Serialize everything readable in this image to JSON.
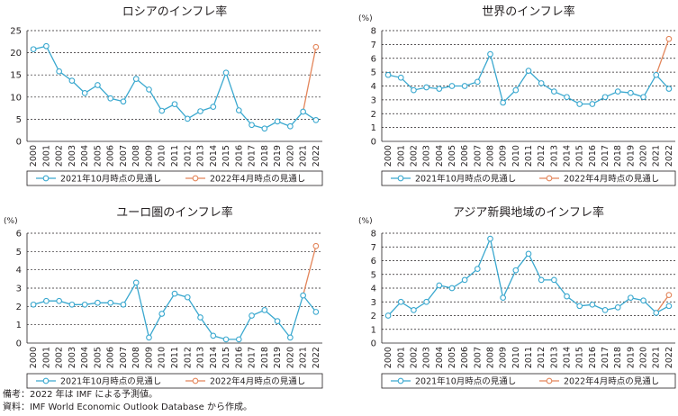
{
  "chart_data": [
    {
      "type": "line",
      "title": "ロシアのインフレ率",
      "ylabel": "",
      "ylim": [
        0,
        25
      ],
      "yticks": [
        0,
        5,
        10,
        15,
        20,
        25
      ],
      "grid": true,
      "legend_position": "bottom",
      "x": [
        "2000",
        "2001",
        "2002",
        "2003",
        "2004",
        "2005",
        "2006",
        "2007",
        "2008",
        "2009",
        "2010",
        "2011",
        "2012",
        "2013",
        "2014",
        "2015",
        "2016",
        "2017",
        "2018",
        "2019",
        "2020",
        "2021",
        "2022"
      ],
      "series": [
        {
          "name": "2021年10月時点の見通し",
          "color": "#3aa8cf",
          "values": [
            20.8,
            21.5,
            15.8,
            13.7,
            10.9,
            12.7,
            9.7,
            9.0,
            14.1,
            11.7,
            6.9,
            8.4,
            5.1,
            6.8,
            7.8,
            15.5,
            7.0,
            3.7,
            2.9,
            4.5,
            3.4,
            6.7,
            4.8
          ]
        },
        {
          "name": "2022年4月時点の見通し",
          "color": "#e3855a",
          "x": [
            "2021",
            "2022"
          ],
          "values": [
            6.7,
            21.3
          ]
        }
      ]
    },
    {
      "type": "line",
      "title": "世界のインフレ率",
      "ylabel": "(%)",
      "ylim": [
        0,
        8
      ],
      "yticks": [
        0,
        1,
        2,
        3,
        4,
        5,
        6,
        7,
        8
      ],
      "grid": true,
      "legend_position": "bottom",
      "x": [
        "2000",
        "2001",
        "2002",
        "2003",
        "2004",
        "2005",
        "2006",
        "2007",
        "2008",
        "2009",
        "2010",
        "2011",
        "2012",
        "2013",
        "2014",
        "2015",
        "2016",
        "2017",
        "2018",
        "2019",
        "2020",
        "2021",
        "2022"
      ],
      "series": [
        {
          "name": "2021年10月時点の見通し",
          "color": "#3aa8cf",
          "values": [
            4.8,
            4.6,
            3.7,
            3.9,
            3.8,
            4.0,
            4.0,
            4.3,
            6.3,
            2.8,
            3.7,
            5.1,
            4.2,
            3.6,
            3.2,
            2.7,
            2.7,
            3.2,
            3.6,
            3.5,
            3.2,
            4.8,
            3.8
          ]
        },
        {
          "name": "2022年4月時点の見通し",
          "color": "#e3855a",
          "x": [
            "2021",
            "2022"
          ],
          "values": [
            4.8,
            7.4
          ]
        }
      ]
    },
    {
      "type": "line",
      "title": "ユーロ圏のインフレ率",
      "ylabel": "(%)",
      "ylim": [
        0,
        6
      ],
      "yticks": [
        0,
        1,
        2,
        3,
        4,
        5,
        6
      ],
      "grid": true,
      "legend_position": "bottom",
      "x": [
        "2000",
        "2001",
        "2002",
        "2003",
        "2004",
        "2005",
        "2006",
        "2007",
        "2008",
        "2009",
        "2010",
        "2011",
        "2012",
        "2013",
        "2014",
        "2015",
        "2016",
        "2017",
        "2018",
        "2019",
        "2020",
        "2021",
        "2022"
      ],
      "series": [
        {
          "name": "2021年10月時点の見通し",
          "color": "#3aa8cf",
          "values": [
            2.1,
            2.3,
            2.3,
            2.1,
            2.1,
            2.2,
            2.2,
            2.1,
            3.3,
            0.3,
            1.6,
            2.7,
            2.5,
            1.4,
            0.4,
            0.2,
            0.2,
            1.5,
            1.8,
            1.2,
            0.3,
            2.6,
            1.7
          ]
        },
        {
          "name": "2022年4月時点の見通し",
          "color": "#e3855a",
          "x": [
            "2021",
            "2022"
          ],
          "values": [
            2.6,
            5.3
          ]
        }
      ]
    },
    {
      "type": "line",
      "title": "アジア新興地域のインフレ率",
      "ylabel": "(%)",
      "ylim": [
        0,
        8
      ],
      "yticks": [
        0,
        1,
        2,
        3,
        4,
        5,
        6,
        7,
        8
      ],
      "grid": true,
      "legend_position": "bottom",
      "x": [
        "2000",
        "2001",
        "2002",
        "2003",
        "2004",
        "2005",
        "2006",
        "2007",
        "2008",
        "2009",
        "2010",
        "2011",
        "2012",
        "2013",
        "2014",
        "2015",
        "2016",
        "2017",
        "2018",
        "2019",
        "2020",
        "2021",
        "2022"
      ],
      "series": [
        {
          "name": "2021年10月時点の見通し",
          "color": "#3aa8cf",
          "values": [
            2.0,
            3.0,
            2.4,
            3.0,
            4.2,
            4.0,
            4.6,
            5.4,
            7.6,
            3.3,
            5.3,
            6.5,
            4.6,
            4.6,
            3.4,
            2.7,
            2.8,
            2.4,
            2.6,
            3.3,
            3.1,
            2.2,
            2.7
          ]
        },
        {
          "name": "2022年4月時点の見通し",
          "color": "#e3855a",
          "x": [
            "2021",
            "2022"
          ],
          "values": [
            2.2,
            3.5
          ]
        }
      ]
    }
  ],
  "notes": {
    "line1": "備考：2022 年は IMF による予測値。",
    "line2": "資料：IMF World Economic Outlook Database から作成。"
  }
}
